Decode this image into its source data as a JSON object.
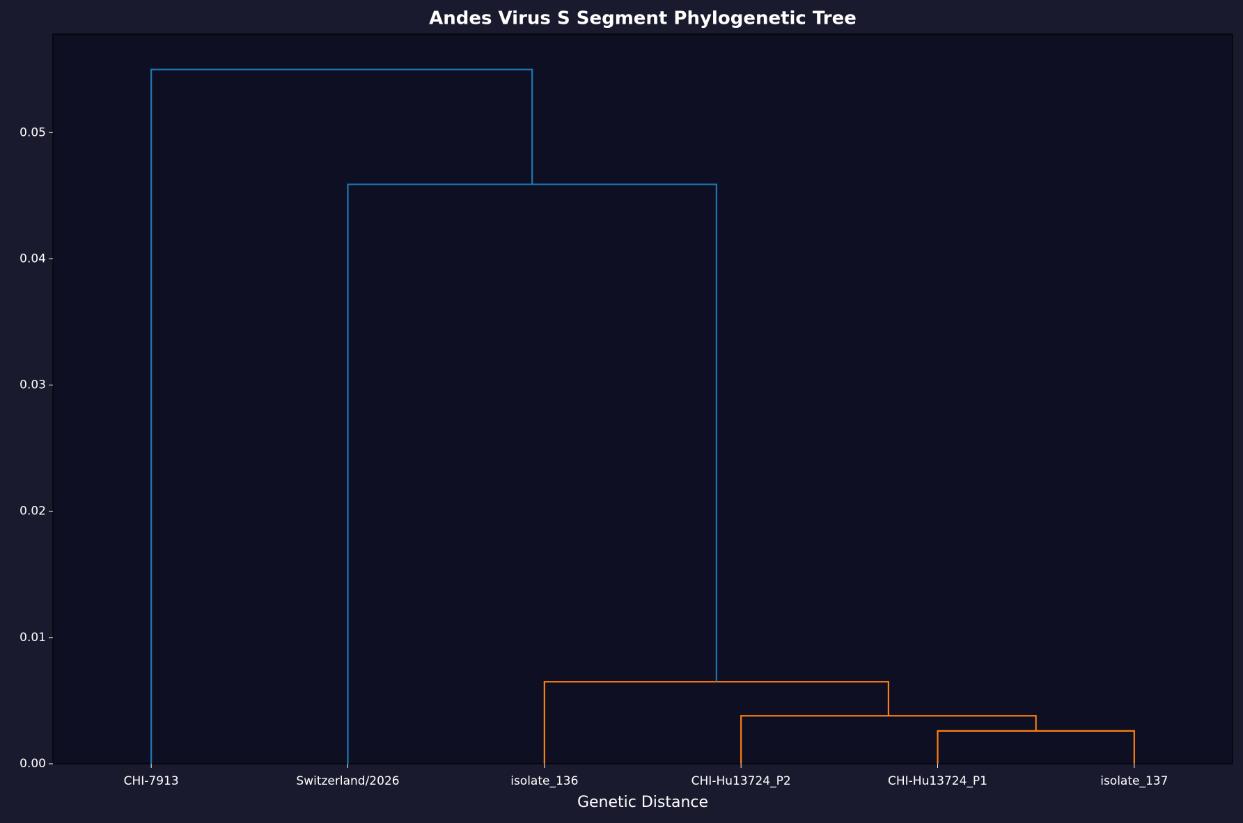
{
  "chart_data": {
    "type": "dendrogram",
    "title": "Andes Virus S Segment Phylogenetic Tree",
    "xlabel": "Genetic Distance",
    "categories": [
      "CHI-7913",
      "Switzerland/2026",
      "isolate_136",
      "CHI-Hu13724_P2",
      "CHI-Hu13724_P1",
      "isolate_137"
    ],
    "merges": [
      {
        "children": [
          4,
          5
        ],
        "height": 0.0026,
        "color": "#ff7f0e"
      },
      {
        "children": [
          3,
          6
        ],
        "height": 0.0038,
        "color": "#ff7f0e"
      },
      {
        "children": [
          2,
          7
        ],
        "height": 0.0065,
        "color": "#ff7f0e"
      },
      {
        "children": [
          1,
          8
        ],
        "height": 0.0459,
        "color": "#1f77b4"
      },
      {
        "children": [
          0,
          9
        ],
        "height": 0.055,
        "color": "#1f77b4"
      }
    ],
    "ylim": [
      0,
      0.0578
    ],
    "yticks": [
      {
        "value": 0,
        "label": "0.00"
      },
      0.01,
      0.02,
      0.03,
      0.04,
      0.05
    ]
  }
}
